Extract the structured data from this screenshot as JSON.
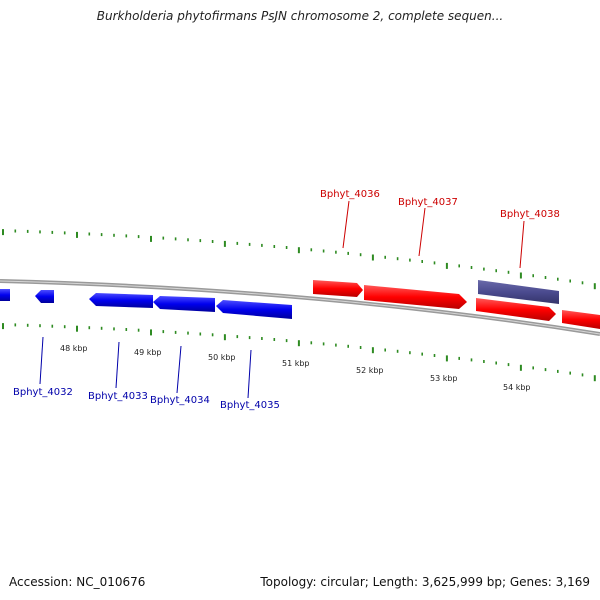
{
  "title": "Burkholderia phytofirmans PsJN chromosome 2, complete sequen...",
  "footer": {
    "accession": "Accession: NC_010676",
    "summary": "Topology: circular; Length: 3,625,999 bp; Genes: 3,169"
  },
  "colors": {
    "backbone": "#8a8a8a",
    "tick": "#2e8b22",
    "forward_gene": "#ff0000",
    "reverse_gene": "#0000ee",
    "other_gene": "#4b4b8f",
    "forward_label": "#cc0000",
    "reverse_label": "#0000aa"
  },
  "ruler": {
    "labels": [
      "48 kbp",
      "49 kbp",
      "50 kbp",
      "51 kbp",
      "52 kbp",
      "53 kbp",
      "54 kbp"
    ]
  },
  "genes": {
    "reverse": [
      "Bphyt_4032",
      "Bphyt_4033",
      "Bphyt_4034",
      "Bphyt_4035"
    ],
    "forward": [
      "Bphyt_4036",
      "Bphyt_4037",
      "Bphyt_4038"
    ]
  }
}
